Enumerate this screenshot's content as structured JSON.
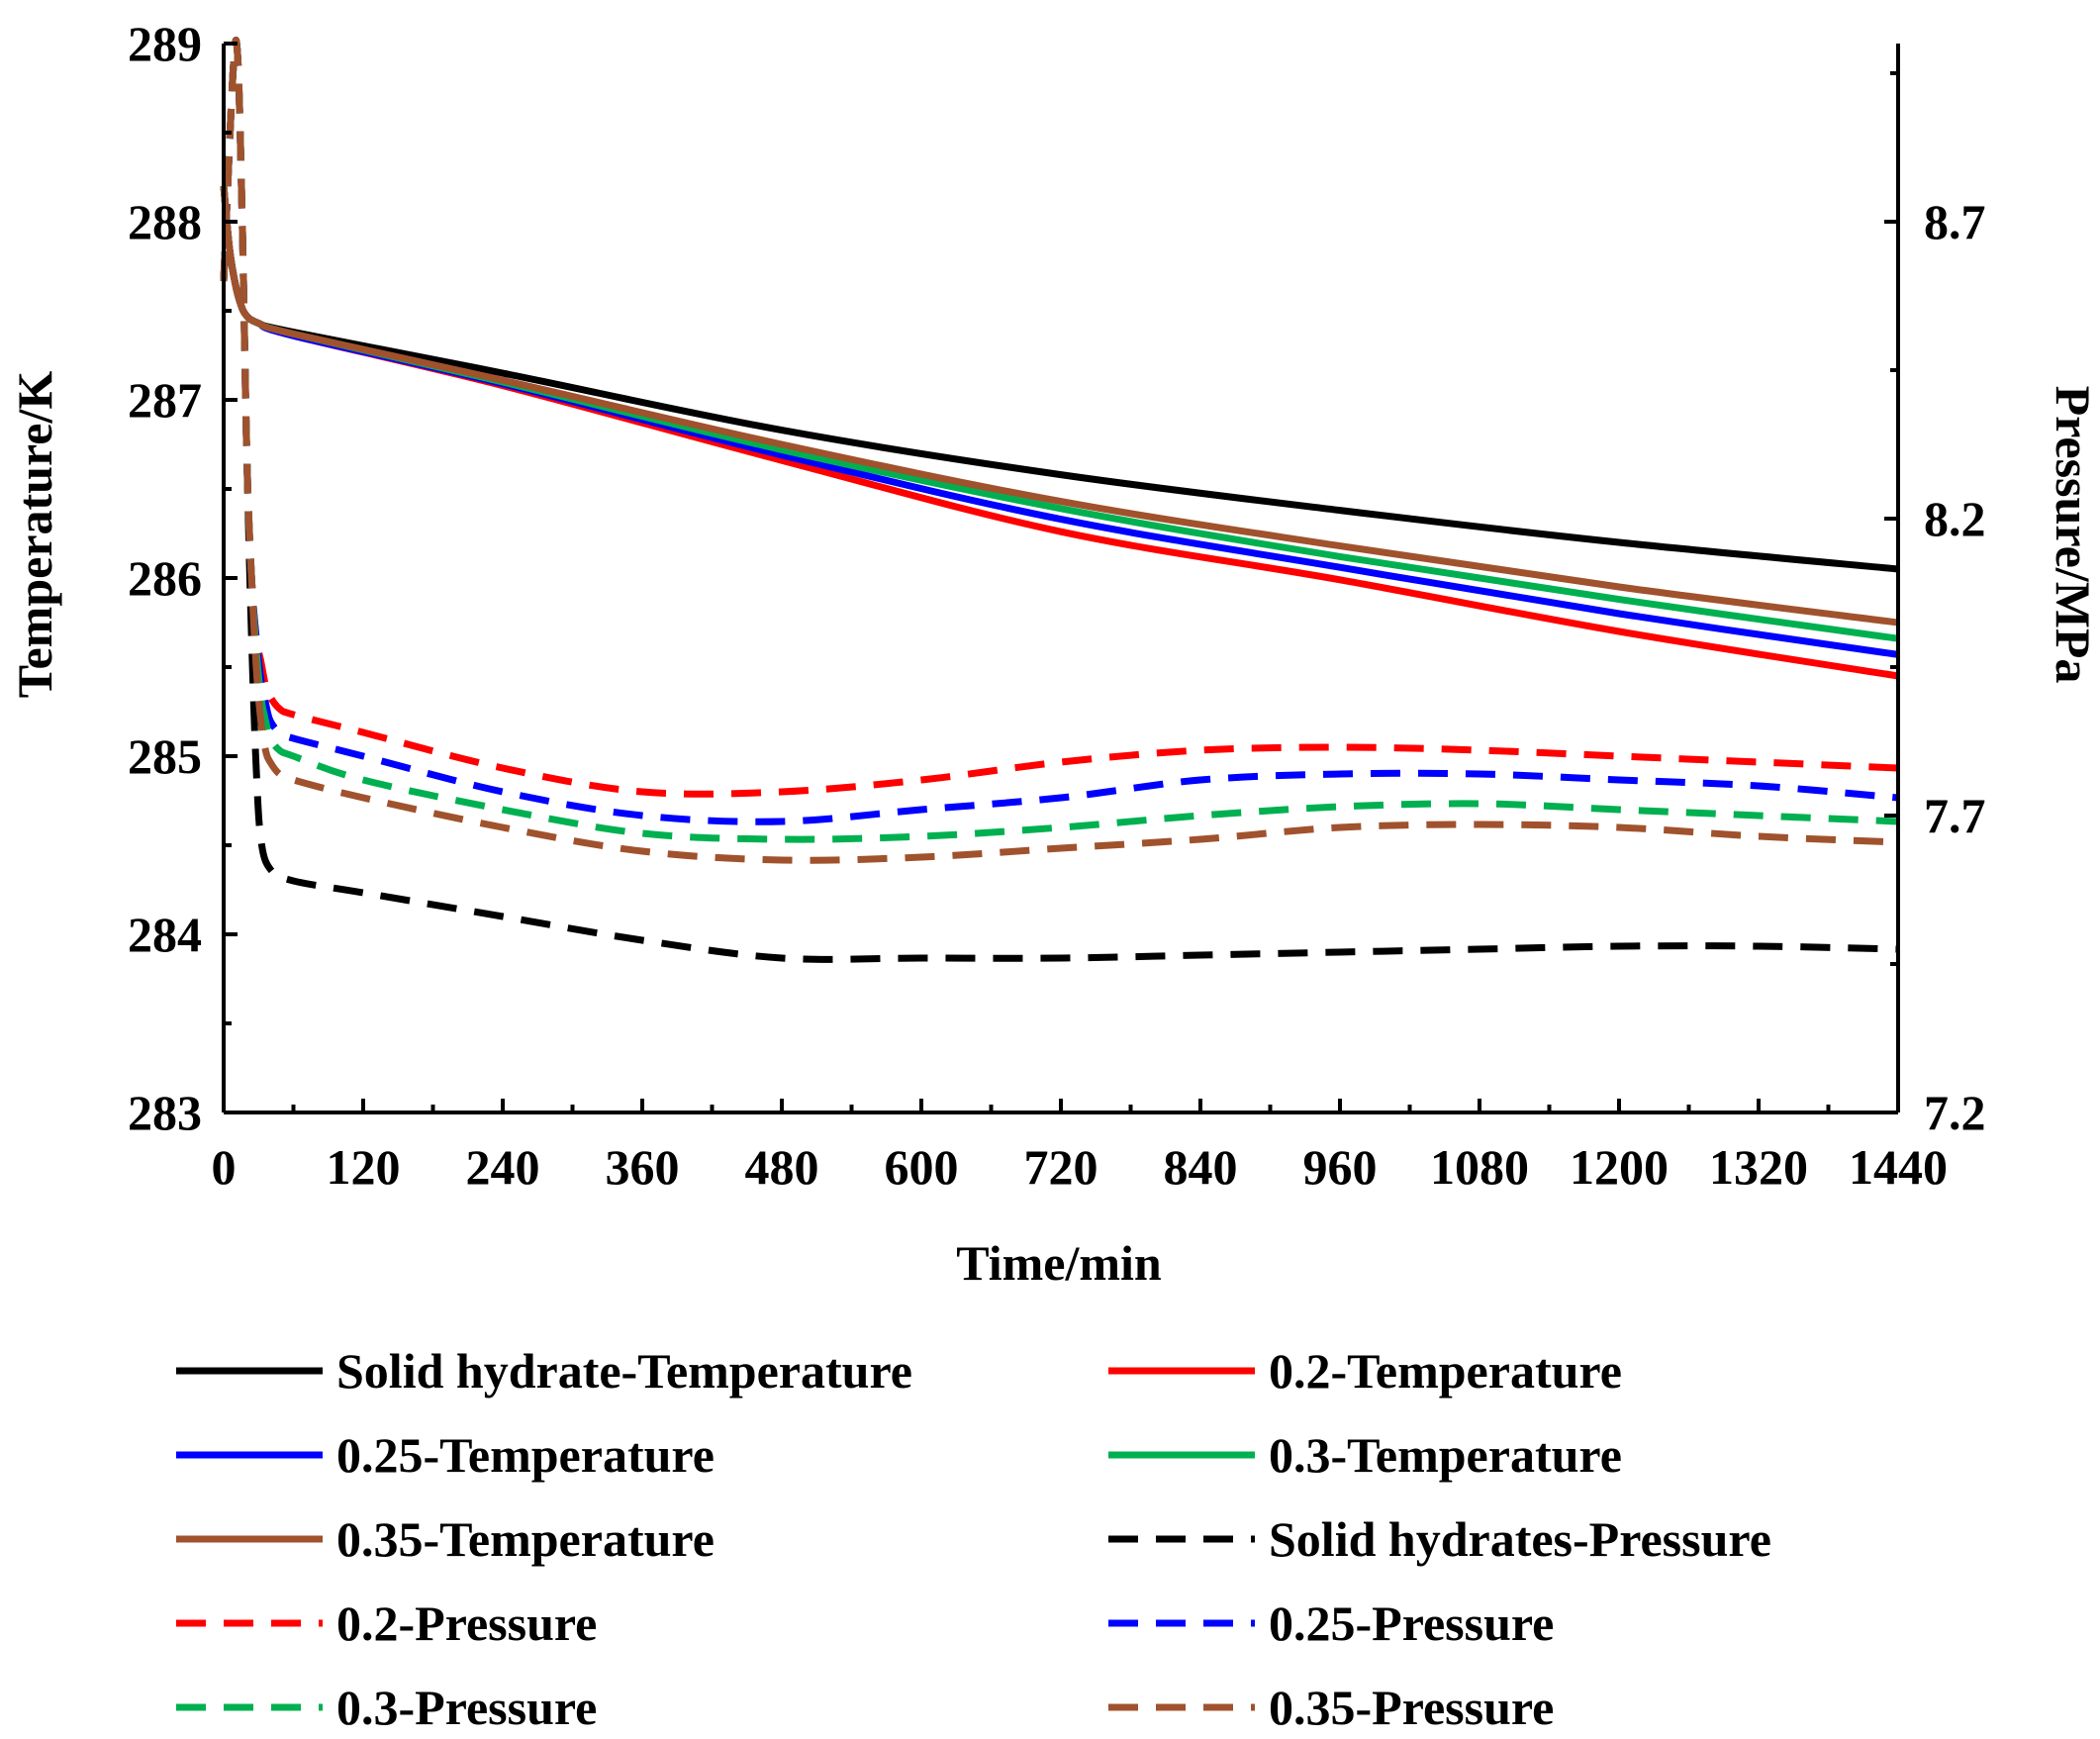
{
  "chart_data": {
    "type": "line",
    "title": "",
    "xlabel": "Time/min",
    "ylabel_left": "Temperature/K",
    "ylabel_right": "Pressure/MPa",
    "xlim": [
      0,
      1440
    ],
    "ylim_left": [
      283,
      289
    ],
    "ylim_right": [
      7.2,
      9.0
    ],
    "x_ticks": [
      0,
      120,
      240,
      360,
      480,
      600,
      720,
      840,
      960,
      1080,
      1200,
      1320,
      1440
    ],
    "x_tick_labels": [
      "0",
      "120",
      "240",
      "360",
      "480",
      "600",
      "720",
      "840",
      "960",
      "1080",
      "1200",
      "1320",
      "1440"
    ],
    "y_left_ticks": [
      283,
      284,
      285,
      286,
      287,
      288,
      289
    ],
    "y_left_tick_labels": [
      "283",
      "284",
      "285",
      "286",
      "287",
      "288",
      "289"
    ],
    "y_right_ticks": [
      7.2,
      7.7,
      8.2,
      8.7
    ],
    "y_right_tick_labels": [
      "7.2",
      "7.7",
      "8.2",
      "8.7"
    ],
    "grid": false,
    "legend_position": "bottom",
    "series": [
      {
        "name": "Solid hydrate-Temperature",
        "axis": "left",
        "color": "#000000",
        "style": "solid",
        "x": [
          0,
          5,
          10,
          15,
          20,
          30,
          60,
          240,
          480,
          720,
          960,
          1200,
          1440
        ],
        "y": [
          288.2,
          287.85,
          287.65,
          287.53,
          287.47,
          287.43,
          287.38,
          287.15,
          286.83,
          286.58,
          286.38,
          286.2,
          286.05
        ]
      },
      {
        "name": "0.2-Temperature",
        "axis": "left",
        "color": "#ff0000",
        "style": "solid",
        "x": [
          0,
          5,
          10,
          15,
          20,
          30,
          60,
          240,
          480,
          720,
          960,
          1200,
          1440
        ],
        "y": [
          288.2,
          287.85,
          287.65,
          287.53,
          287.47,
          287.43,
          287.36,
          287.08,
          286.66,
          286.26,
          285.99,
          285.7,
          285.45
        ]
      },
      {
        "name": "0.25-Temperature",
        "axis": "left",
        "color": "#0000ff",
        "style": "solid",
        "x": [
          0,
          5,
          10,
          15,
          20,
          30,
          60,
          240,
          480,
          720,
          960,
          1200,
          1440
        ],
        "y": [
          288.2,
          287.85,
          287.65,
          287.53,
          287.47,
          287.43,
          287.36,
          287.09,
          286.69,
          286.33,
          286.06,
          285.8,
          285.57
        ]
      },
      {
        "name": "0.3-Temperature",
        "axis": "left",
        "color": "#00b050",
        "style": "solid",
        "x": [
          0,
          5,
          10,
          15,
          20,
          30,
          60,
          240,
          480,
          720,
          960,
          1200,
          1440
        ],
        "y": [
          288.2,
          287.85,
          287.65,
          287.53,
          287.47,
          287.43,
          287.37,
          287.1,
          286.72,
          286.39,
          286.12,
          285.88,
          285.66
        ]
      },
      {
        "name": "0.35-Temperature",
        "axis": "left",
        "color": "#a0522d",
        "style": "solid",
        "x": [
          0,
          5,
          10,
          15,
          20,
          30,
          60,
          240,
          480,
          720,
          960,
          1200,
          1440
        ],
        "y": [
          288.2,
          287.85,
          287.65,
          287.53,
          287.47,
          287.43,
          287.37,
          287.11,
          286.75,
          286.43,
          286.18,
          285.95,
          285.75
        ]
      },
      {
        "name": "Solid hydrates-Pressure",
        "axis": "right",
        "color": "#000000",
        "style": "dashed",
        "x": [
          0,
          8,
          12,
          16,
          20,
          24,
          28,
          32,
          40,
          60,
          120,
          240,
          360,
          480,
          600,
          720,
          840,
          960,
          1080,
          1200,
          1320,
          1440
        ],
        "y": [
          8.6,
          8.95,
          8.98,
          8.7,
          8.3,
          8.0,
          7.78,
          7.66,
          7.61,
          7.59,
          7.57,
          7.53,
          7.49,
          7.46,
          7.46,
          7.46,
          7.465,
          7.47,
          7.475,
          7.48,
          7.48,
          7.475
        ]
      },
      {
        "name": "0.2-Pressure",
        "axis": "right",
        "color": "#ff0000",
        "style": "dashed",
        "x": [
          0,
          8,
          12,
          16,
          20,
          24,
          28,
          32,
          36,
          40,
          48,
          60,
          120,
          240,
          360,
          480,
          600,
          720,
          840,
          960,
          1080,
          1200,
          1320,
          1440
        ],
        "y": [
          8.6,
          8.95,
          8.98,
          8.7,
          8.3,
          8.1,
          8.0,
          7.96,
          7.92,
          7.9,
          7.88,
          7.87,
          7.84,
          7.78,
          7.74,
          7.74,
          7.76,
          7.79,
          7.81,
          7.815,
          7.81,
          7.8,
          7.79,
          7.78
        ]
      },
      {
        "name": "0.25-Pressure",
        "axis": "right",
        "color": "#0000ff",
        "style": "dashed",
        "x": [
          0,
          8,
          12,
          16,
          20,
          24,
          28,
          32,
          36,
          40,
          48,
          60,
          120,
          240,
          360,
          480,
          600,
          720,
          840,
          960,
          1080,
          1200,
          1320,
          1440
        ],
        "y": [
          8.6,
          8.95,
          8.98,
          8.7,
          8.3,
          8.1,
          8.0,
          7.93,
          7.89,
          7.86,
          7.84,
          7.83,
          7.8,
          7.74,
          7.7,
          7.69,
          7.71,
          7.73,
          7.76,
          7.77,
          7.77,
          7.76,
          7.75,
          7.73
        ]
      },
      {
        "name": "0.3-Pressure",
        "axis": "right",
        "color": "#00b050",
        "style": "dashed",
        "x": [
          0,
          8,
          12,
          16,
          20,
          24,
          28,
          32,
          36,
          40,
          48,
          60,
          120,
          240,
          360,
          480,
          600,
          720,
          840,
          960,
          1080,
          1200,
          1320,
          1440
        ],
        "y": [
          8.6,
          8.95,
          8.98,
          8.7,
          8.3,
          8.1,
          7.98,
          7.9,
          7.86,
          7.83,
          7.81,
          7.8,
          7.76,
          7.71,
          7.67,
          7.66,
          7.665,
          7.68,
          7.7,
          7.715,
          7.72,
          7.71,
          7.7,
          7.69
        ]
      },
      {
        "name": "0.35-Pressure",
        "axis": "right",
        "color": "#a0522d",
        "style": "dashed",
        "x": [
          0,
          8,
          12,
          16,
          20,
          24,
          28,
          32,
          36,
          40,
          48,
          60,
          120,
          240,
          360,
          480,
          600,
          720,
          840,
          960,
          1080,
          1200,
          1320,
          1440
        ],
        "y": [
          8.6,
          8.95,
          8.98,
          8.7,
          8.3,
          8.1,
          7.95,
          7.86,
          7.81,
          7.79,
          7.77,
          7.76,
          7.73,
          7.68,
          7.64,
          7.625,
          7.63,
          7.645,
          7.66,
          7.68,
          7.685,
          7.68,
          7.665,
          7.655
        ]
      }
    ],
    "legend": [
      {
        "label": "Solid hydrate-Temperature",
        "color": "#000000",
        "style": "solid"
      },
      {
        "label": "0.2-Temperature",
        "color": "#ff0000",
        "style": "solid"
      },
      {
        "label": "0.25-Temperature",
        "color": "#0000ff",
        "style": "solid"
      },
      {
        "label": "0.3-Temperature",
        "color": "#00b050",
        "style": "solid"
      },
      {
        "label": "0.35-Temperature",
        "color": "#a0522d",
        "style": "solid"
      },
      {
        "label": "Solid hydrates-Pressure",
        "color": "#000000",
        "style": "dashed"
      },
      {
        "label": "0.2-Pressure",
        "color": "#ff0000",
        "style": "dashed"
      },
      {
        "label": "0.25-Pressure",
        "color": "#0000ff",
        "style": "dashed"
      },
      {
        "label": "0.3-Pressure",
        "color": "#00b050",
        "style": "dashed"
      },
      {
        "label": "0.35-Pressure",
        "color": "#a0522d",
        "style": "dashed"
      }
    ]
  }
}
